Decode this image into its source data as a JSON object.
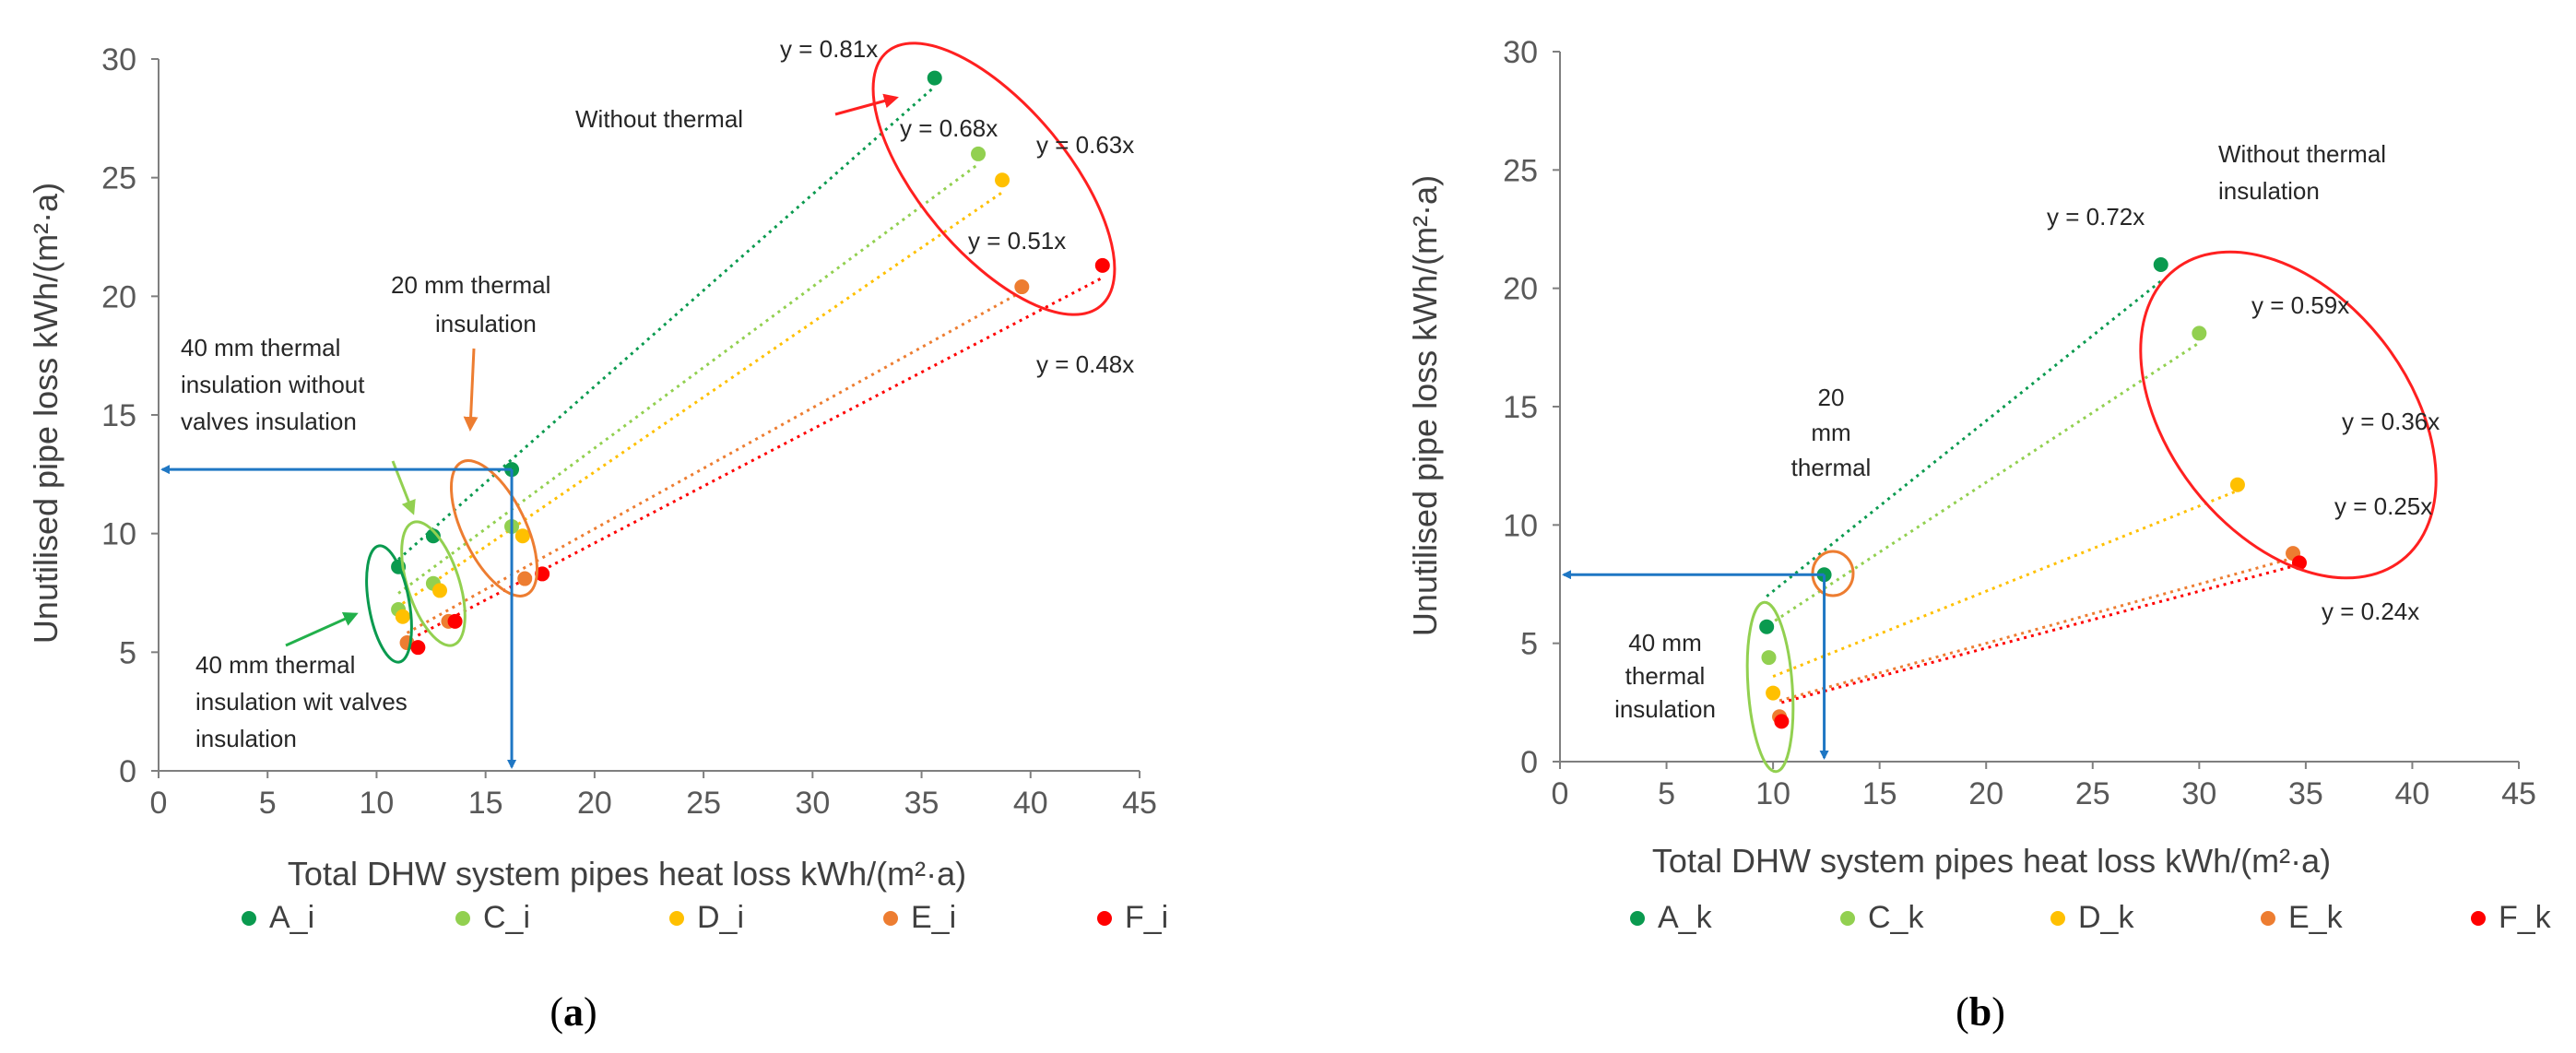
{
  "chart_data": [
    {
      "type": "scatter",
      "panel_label": "a",
      "xlabel": "Total DHW system pipes heat loss kWh/(m²·a)",
      "ylabel": "Unutilised pipe loss kWh/(m²·a)",
      "xlim": [
        0,
        45
      ],
      "ylim": [
        0,
        30
      ],
      "xticks": [
        "0",
        "5",
        "10",
        "15",
        "20",
        "25",
        "30",
        "35",
        "40",
        "45"
      ],
      "yticks": [
        "0",
        "5",
        "10",
        "15",
        "20",
        "25",
        "30"
      ],
      "grid": false,
      "legend_position": "bottom",
      "series": [
        {
          "name": "A_i",
          "color": "#0a9a4f",
          "points": [
            [
              11.0,
              8.6
            ],
            [
              12.6,
              9.9
            ],
            [
              16.2,
              12.7
            ],
            [
              35.6,
              29.2
            ]
          ],
          "trend_slope": 0.81,
          "trend_label": "y = 0.81x",
          "trend_from": 11.0,
          "trend_to": 35.6
        },
        {
          "name": "C_i",
          "color": "#92d050",
          "points": [
            [
              11.0,
              6.8
            ],
            [
              12.6,
              7.9
            ],
            [
              16.2,
              10.3
            ],
            [
              37.6,
              26.0
            ]
          ],
          "trend_slope": 0.68,
          "trend_label": "y = 0.68x",
          "trend_from": 11.0,
          "trend_to": 37.6
        },
        {
          "name": "D_i",
          "color": "#ffc000",
          "points": [
            [
              11.2,
              6.5
            ],
            [
              12.9,
              7.6
            ],
            [
              16.7,
              9.9
            ],
            [
              38.7,
              24.9
            ]
          ],
          "trend_slope": 0.63,
          "trend_label": "y = 0.63x",
          "trend_from": 11.2,
          "trend_to": 38.7
        },
        {
          "name": "E_i",
          "color": "#ed7d31",
          "points": [
            [
              11.4,
              5.4
            ],
            [
              13.3,
              6.3
            ],
            [
              16.8,
              8.1
            ],
            [
              39.6,
              20.4
            ]
          ],
          "trend_slope": 0.51,
          "trend_label": "y = 0.51x",
          "trend_from": 11.4,
          "trend_to": 39.6
        },
        {
          "name": "F_i",
          "color": "#ff0000",
          "points": [
            [
              11.9,
              5.2
            ],
            [
              13.6,
              6.3
            ],
            [
              17.6,
              8.3
            ],
            [
              43.3,
              21.3
            ]
          ],
          "trend_slope": 0.48,
          "trend_label": "y = 0.48x",
          "trend_from": 11.9,
          "trend_to": 43.3
        }
      ],
      "annotations": {
        "without": "Without thermal",
        "mm20": [
          "20 mm thermal",
          "insulation"
        ],
        "mm40_without": [
          "40 mm thermal",
          "insulation without",
          "valves insulation"
        ],
        "mm40_with": [
          "40 mm thermal",
          "insulation wit valves",
          "insulation"
        ]
      },
      "reference_point": [
        16.2,
        12.7
      ]
    },
    {
      "type": "scatter",
      "panel_label": "b",
      "xlabel": "Total DHW system pipes heat loss kWh/(m²·a)",
      "ylabel": "Unutilised pipe loss kWh/(m²·a)",
      "xlim": [
        0,
        45
      ],
      "ylim": [
        0,
        30
      ],
      "xticks": [
        "0",
        "5",
        "10",
        "15",
        "20",
        "25",
        "30",
        "35",
        "40",
        "45"
      ],
      "yticks": [
        "0",
        "5",
        "10",
        "15",
        "20",
        "25",
        "30"
      ],
      "grid": false,
      "legend_position": "bottom",
      "series": [
        {
          "name": "A_k",
          "color": "#0a9a4f",
          "points": [
            [
              9.7,
              5.7
            ],
            [
              12.4,
              7.9
            ],
            [
              28.2,
              21.0
            ]
          ],
          "trend_slope": 0.72,
          "trend_label": "y = 0.72x",
          "trend_from": 9.7,
          "trend_to": 28.2
        },
        {
          "name": "C_k",
          "color": "#92d050",
          "points": [
            [
              9.8,
              4.4
            ],
            [
              30.0,
              18.1
            ]
          ],
          "trend_slope": 0.59,
          "trend_label": "y = 0.59x",
          "trend_from": 9.8,
          "trend_to": 30.0
        },
        {
          "name": "D_k",
          "color": "#ffc000",
          "points": [
            [
              10.0,
              2.9
            ],
            [
              31.8,
              11.7
            ]
          ],
          "trend_slope": 0.36,
          "trend_label": "y = 0.36x",
          "trend_from": 10.0,
          "trend_to": 31.8
        },
        {
          "name": "E_k",
          "color": "#ed7d31",
          "points": [
            [
              10.3,
              1.9
            ],
            [
              34.4,
              8.8
            ]
          ],
          "trend_slope": 0.25,
          "trend_label": "y = 0.25x",
          "trend_from": 10.3,
          "trend_to": 34.4
        },
        {
          "name": "F_k",
          "color": "#ff0000",
          "points": [
            [
              10.4,
              1.7
            ],
            [
              34.7,
              8.4
            ]
          ],
          "trend_slope": 0.24,
          "trend_label": "y = 0.24x",
          "trend_from": 10.4,
          "trend_to": 34.7
        }
      ],
      "annotations": {
        "without": [
          "Without thermal",
          "insulation"
        ],
        "mm20": [
          "20",
          "mm",
          "thermal",
          "insulation"
        ],
        "mm40": [
          "40 mm",
          "thermal",
          "insulation"
        ]
      },
      "reference_point": [
        12.4,
        7.9
      ]
    }
  ]
}
